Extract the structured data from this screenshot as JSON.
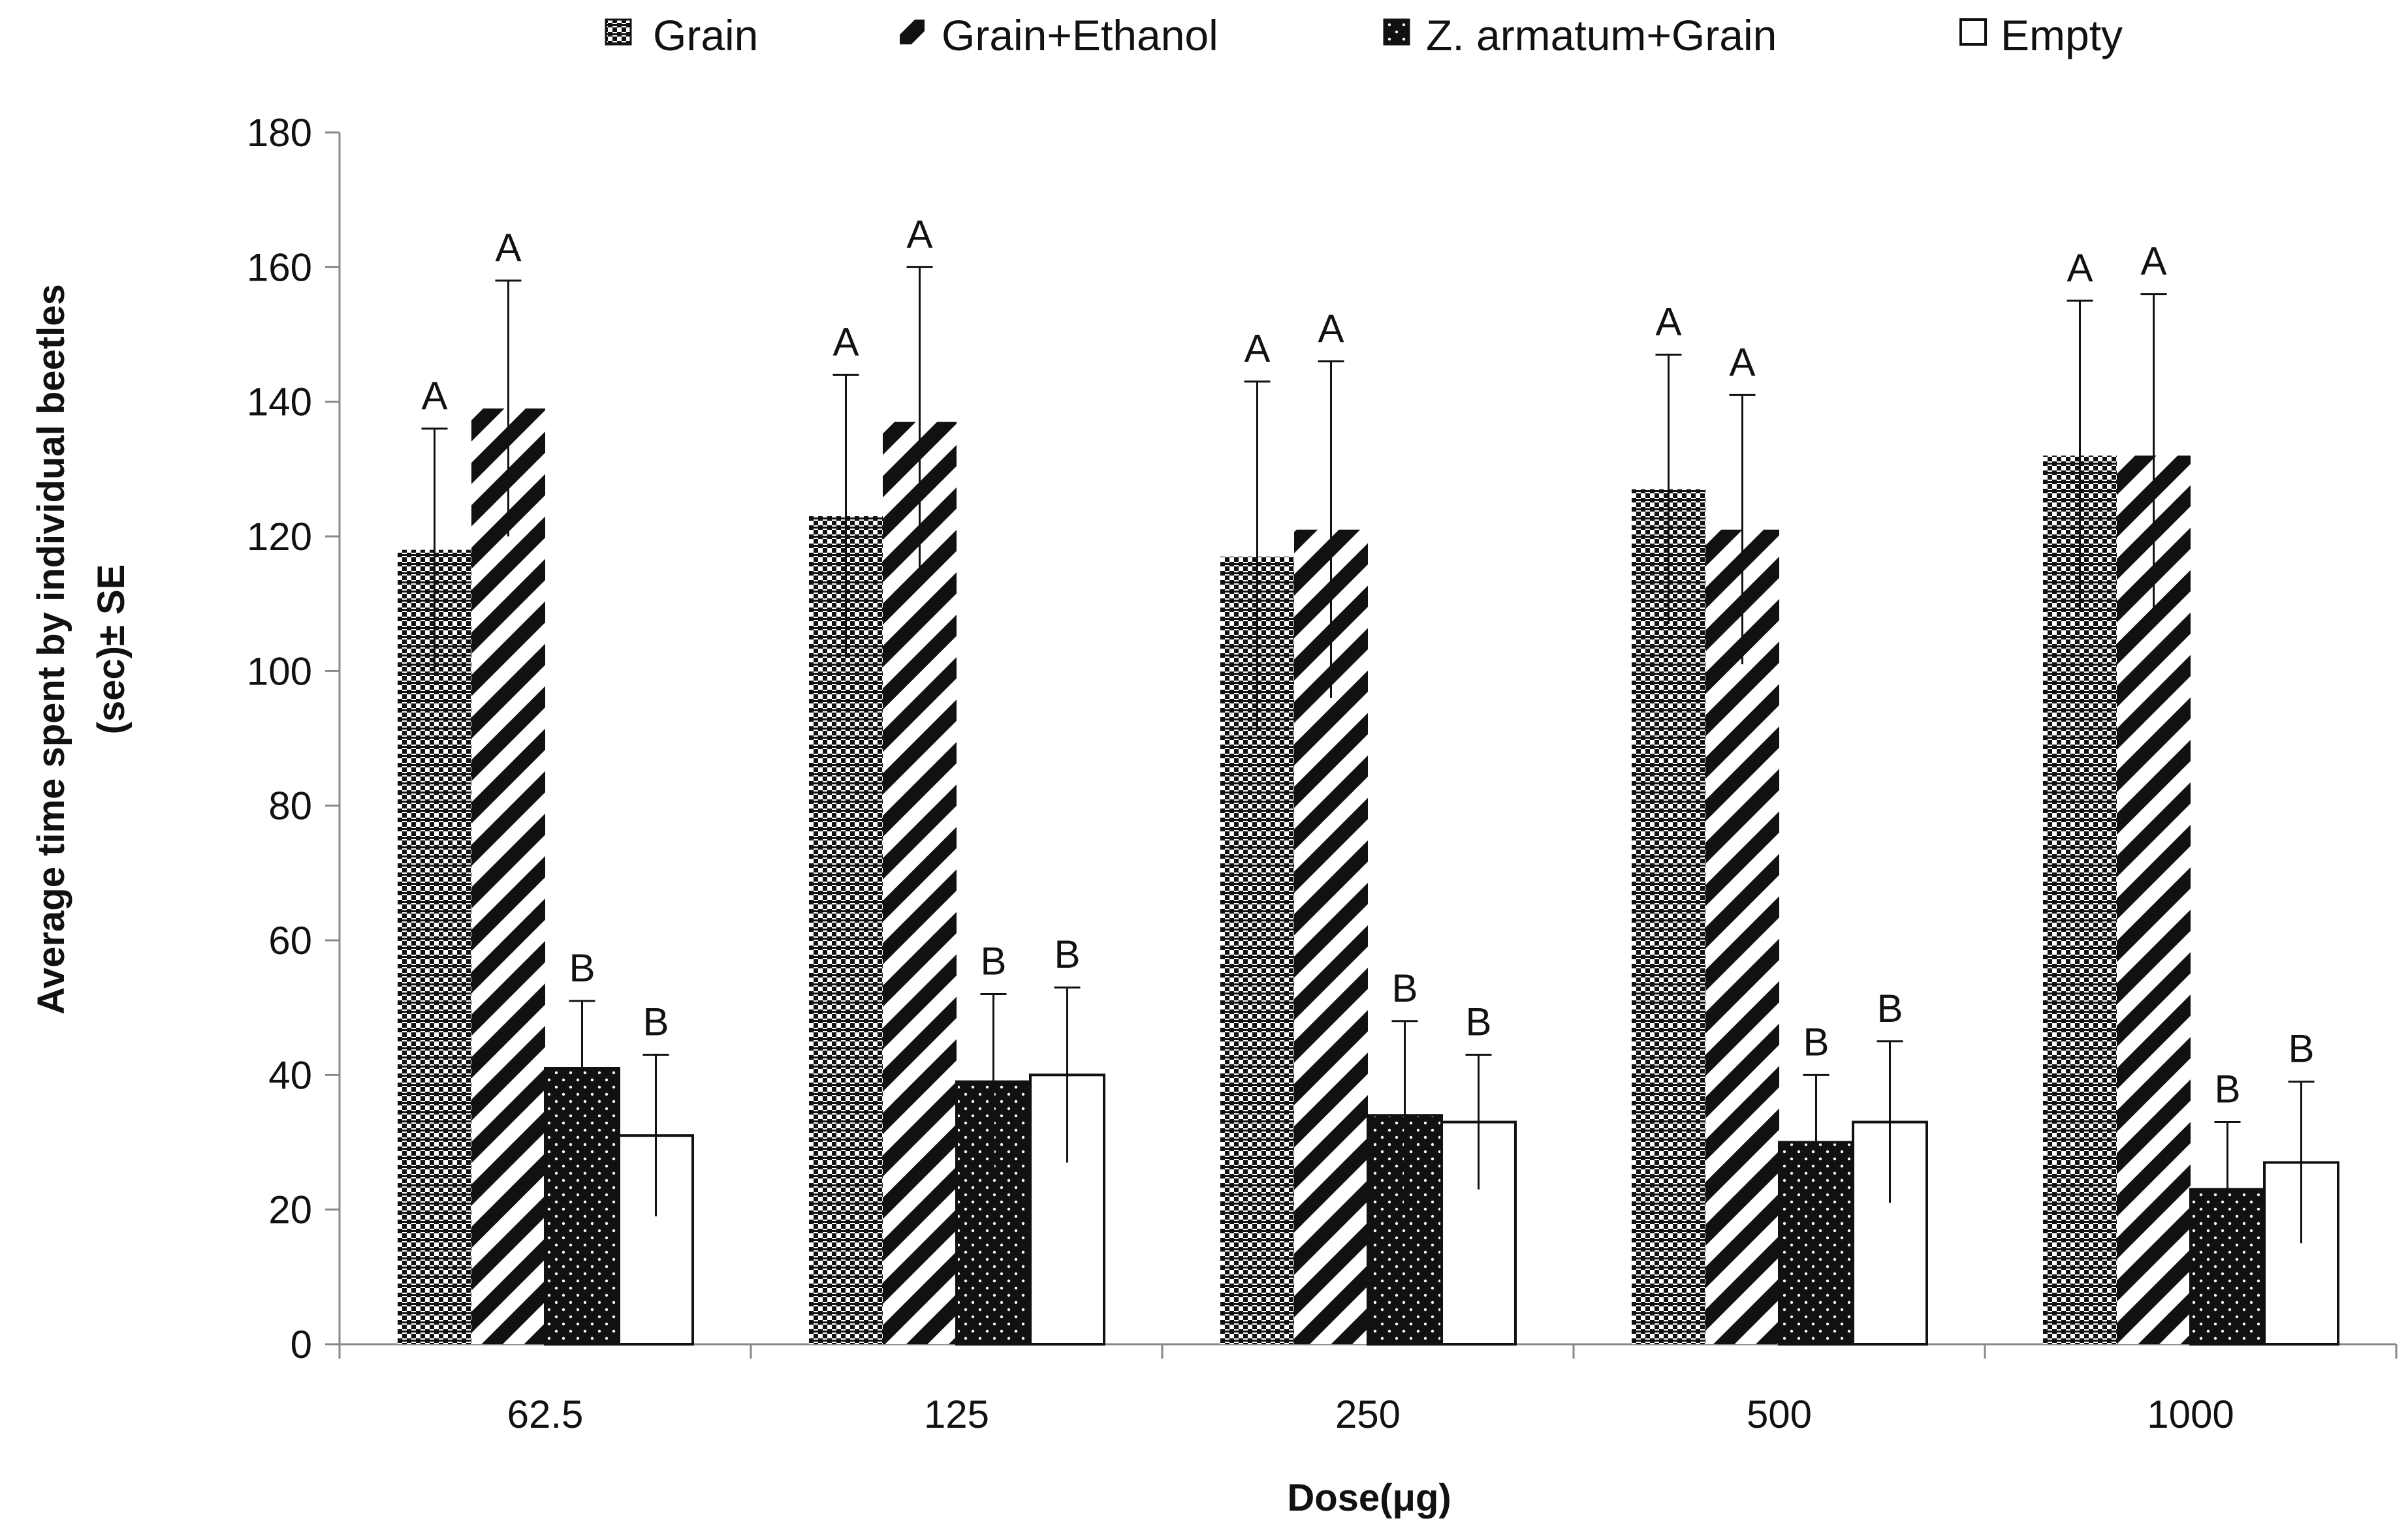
{
  "chart_data": {
    "type": "bar",
    "title": "",
    "xlabel": "Dose(μg)",
    "ylabel_line1": "Average time spent by individual beetles",
    "ylabel_line2": "(sec)± SE",
    "ylim": [
      0,
      180
    ],
    "yticks": [
      0,
      20,
      40,
      60,
      80,
      100,
      120,
      140,
      160,
      180
    ],
    "categories": [
      "62.5",
      "125",
      "250",
      "500",
      "1000"
    ],
    "legend_position": "top",
    "series": [
      {
        "name": "Grain",
        "pattern": "checker",
        "values": [
          118,
          123,
          117,
          127,
          132
        ],
        "errors": [
          18,
          21,
          26,
          20,
          23
        ],
        "letters": [
          "A",
          "A",
          "A",
          "A",
          "A"
        ]
      },
      {
        "name": "Grain+Ethanol",
        "pattern": "diagonal",
        "values": [
          139,
          137,
          121,
          121,
          132
        ],
        "errors": [
          19,
          23,
          25,
          20,
          24
        ],
        "letters": [
          "A",
          "A",
          "A",
          "A",
          "A"
        ]
      },
      {
        "name": "Z. armatum+Grain",
        "pattern": "dots",
        "values": [
          41,
          39,
          34,
          30,
          23
        ],
        "errors": [
          10,
          13,
          14,
          10,
          10
        ],
        "letters": [
          "B",
          "B",
          "B",
          "B",
          "B"
        ]
      },
      {
        "name": "Empty",
        "pattern": "empty",
        "values": [
          31,
          40,
          33,
          33,
          27
        ],
        "errors": [
          12,
          13,
          10,
          12,
          12
        ],
        "letters": [
          "B",
          "B",
          "B",
          "B",
          "B"
        ]
      }
    ],
    "colors": {
      "ink": "#111111",
      "background": "#ffffff",
      "axis": "#888888"
    }
  }
}
